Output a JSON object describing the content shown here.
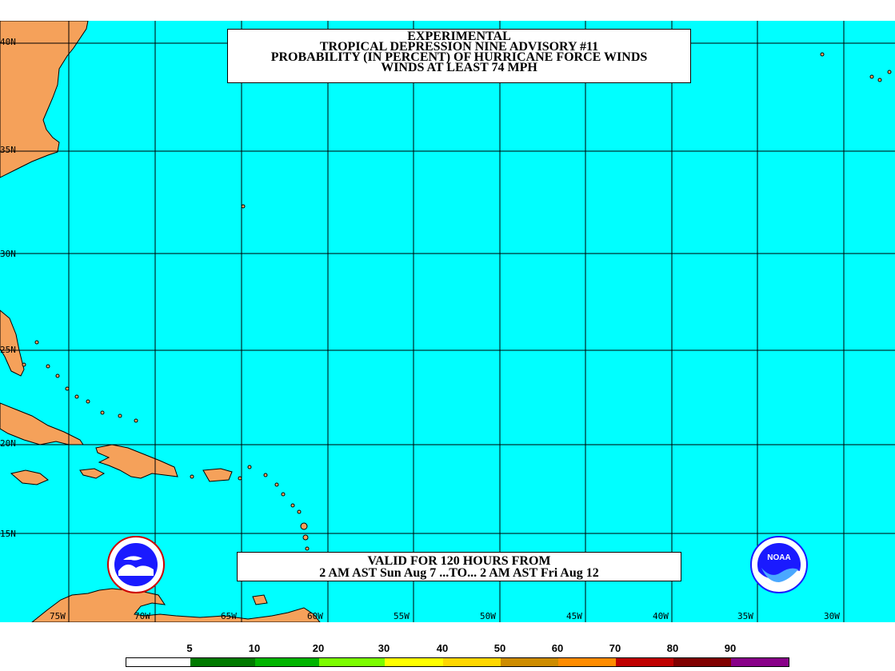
{
  "title_box": {
    "lines": [
      "EXPERIMENTAL",
      "TROPICAL DEPRESSION NINE ADVISORY #11",
      "PROBABILITY (IN PERCENT) OF HURRICANE FORCE WINDS",
      "WINDS AT LEAST 74 MPH"
    ]
  },
  "valid_box": {
    "lines": [
      "VALID FOR 120 HOURS FROM",
      "2 AM AST Sun Aug 7 ...TO... 2 AM AST Fri Aug 12"
    ]
  },
  "latitude_labels": [
    "40N",
    "35N",
    "30N",
    "25N",
    "20N",
    "15N"
  ],
  "longitude_labels": [
    "75W",
    "70W",
    "65W",
    "60W",
    "55W",
    "50W",
    "45W",
    "40W",
    "35W",
    "30W"
  ],
  "legend": {
    "labels": [
      "5",
      "10",
      "20",
      "30",
      "40",
      "50",
      "60",
      "70",
      "80",
      "90"
    ],
    "colors": [
      "#ffffff",
      "#007a00",
      "#00b400",
      "#7cfc00",
      "#ffff00",
      "#ffd700",
      "#cd8c00",
      "#ff8c00",
      "#c00000",
      "#800000",
      "#880088"
    ]
  },
  "colors": {
    "ocean": "#00ffff",
    "land": "#f5a15a",
    "grid": "#000000"
  },
  "logos": {
    "left": "nws-logo-icon",
    "right": "noaa-logo-icon",
    "right_text": "NOAA"
  }
}
